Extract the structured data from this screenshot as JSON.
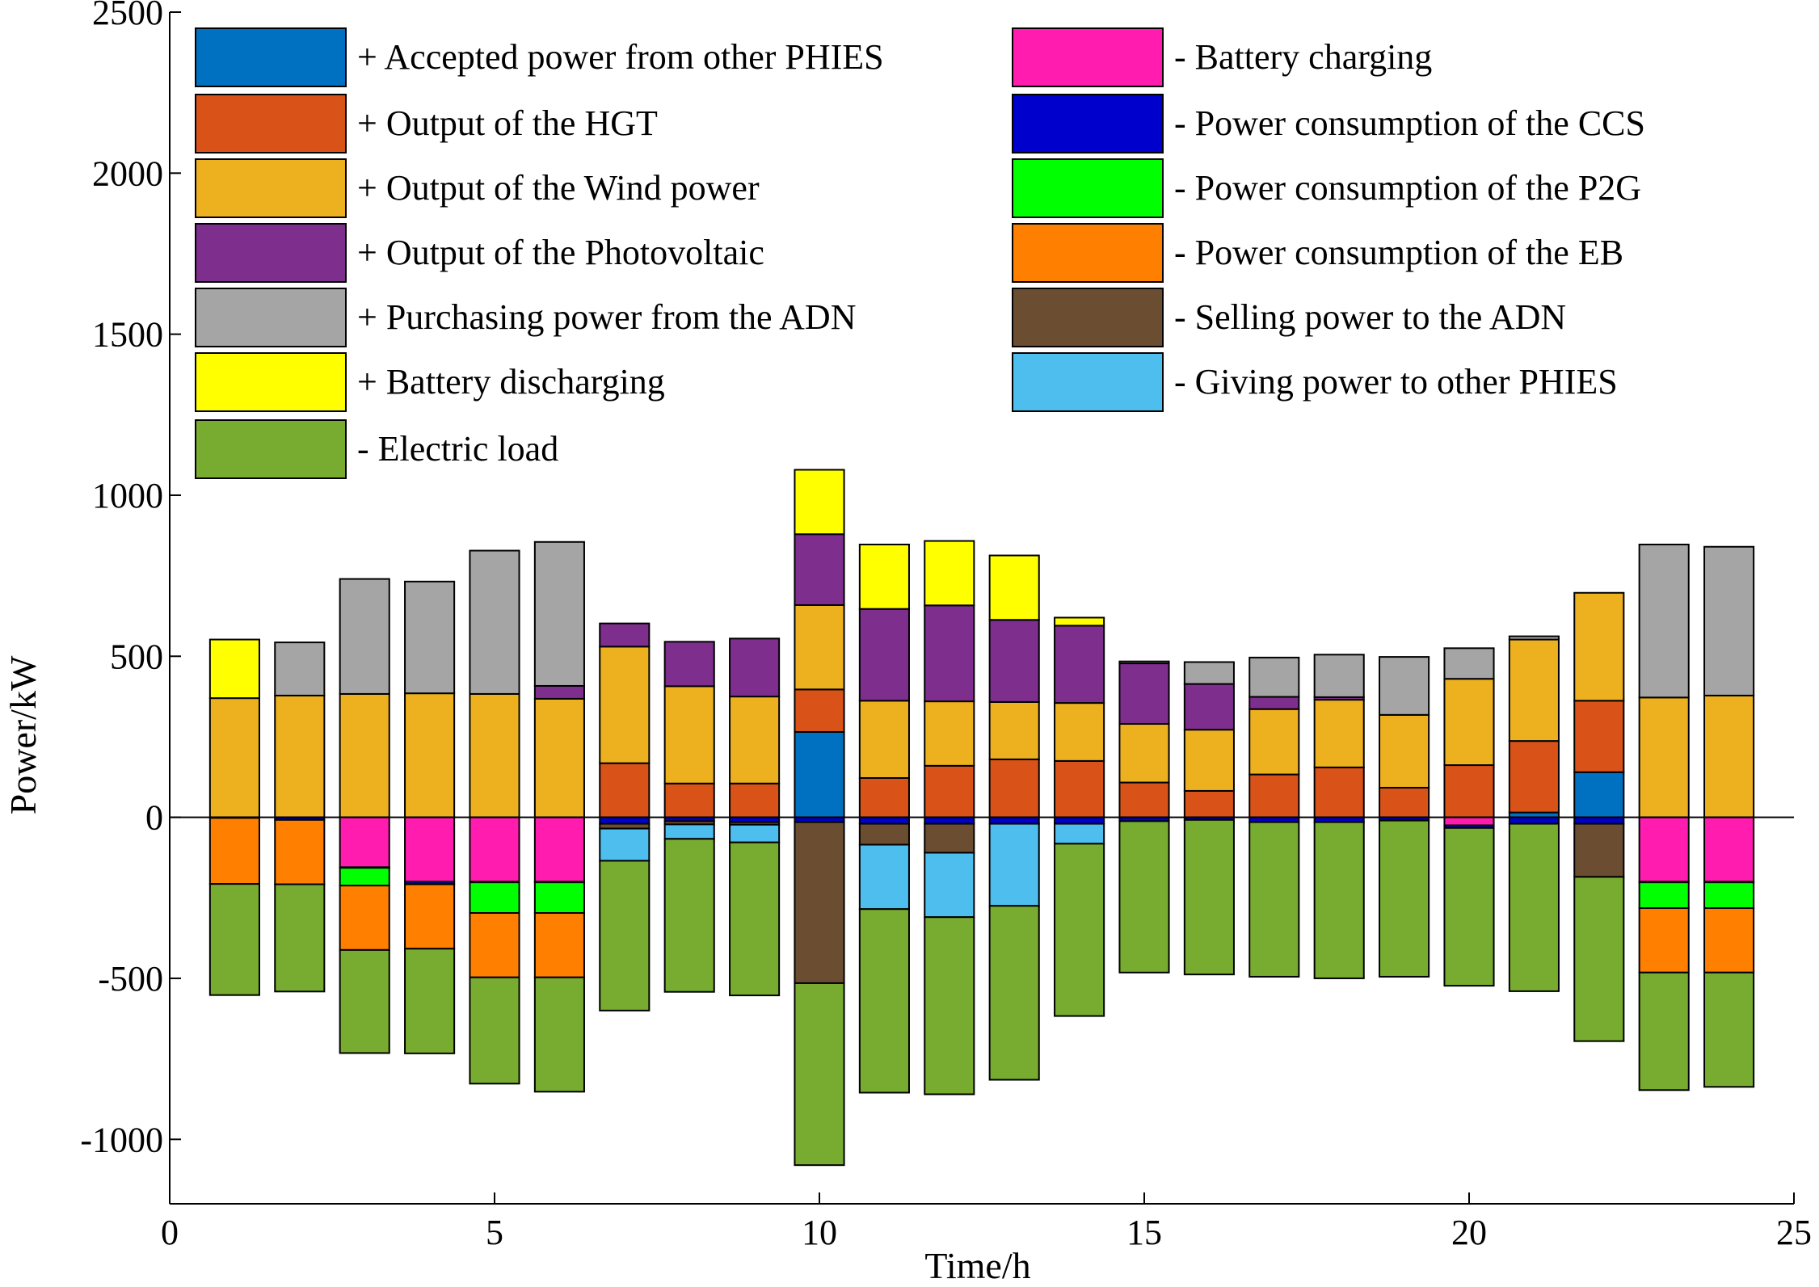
{
  "chart_data": {
    "type": "stacked-bar",
    "xlabel": "Time/h",
    "ylabel": "Power/kW",
    "xlim": [
      0,
      25
    ],
    "ylim": [
      -1200,
      2500
    ],
    "xticks": [
      0,
      5,
      10,
      15,
      20,
      25
    ],
    "yticks": [
      -1000,
      -500,
      0,
      500,
      1000,
      1500,
      2000,
      2500
    ],
    "legend_location": "top",
    "x": [
      1,
      2,
      3,
      4,
      5,
      6,
      7,
      8,
      9,
      10,
      11,
      12,
      13,
      14,
      15,
      16,
      17,
      18,
      19,
      20,
      21,
      22,
      23,
      24
    ],
    "series": [
      {
        "name": "+ Accepted power from other PHIES",
        "sign": "positive",
        "color": "#0070C0",
        "values": [
          0,
          0,
          0,
          0,
          0,
          0,
          0,
          0,
          0,
          265,
          0,
          0,
          0,
          0,
          0,
          0,
          0,
          0,
          0,
          0,
          15,
          140,
          0,
          0
        ]
      },
      {
        "name": "+ Output of the HGT",
        "sign": "positive",
        "color": "#D95319",
        "values": [
          0,
          0,
          0,
          0,
          0,
          0,
          168,
          105,
          105,
          132,
          122,
          160,
          180,
          175,
          108,
          82,
          133,
          155,
          92,
          162,
          222,
          222,
          0,
          0
        ]
      },
      {
        "name": "+ Output of the Wind power",
        "sign": "positive",
        "color": "#EDB120",
        "values": [
          370,
          378,
          383,
          385,
          383,
          368,
          362,
          302,
          270,
          262,
          240,
          200,
          178,
          180,
          182,
          190,
          203,
          210,
          226,
          268,
          315,
          335,
          372,
          378
        ]
      },
      {
        "name": "+ Output of the Photovoltaic",
        "sign": "positive",
        "color": "#7E2F8E",
        "values": [
          0,
          0,
          0,
          0,
          0,
          40,
          72,
          138,
          180,
          220,
          285,
          298,
          255,
          240,
          188,
          142,
          38,
          8,
          0,
          0,
          0,
          0,
          0,
          0
        ]
      },
      {
        "name": "+ Purchasing power from the ADN",
        "sign": "positive",
        "color": "#A5A5A5",
        "values": [
          0,
          165,
          357,
          347,
          445,
          447,
          0,
          0,
          0,
          0,
          0,
          0,
          0,
          0,
          6,
          68,
          122,
          132,
          180,
          95,
          10,
          0,
          475,
          462
        ]
      },
      {
        "name": "+ Battery discharging",
        "sign": "positive",
        "color": "#FFFF00",
        "values": [
          182,
          0,
          0,
          0,
          0,
          0,
          0,
          0,
          0,
          200,
          200,
          200,
          200,
          25,
          0,
          0,
          0,
          0,
          0,
          0,
          0,
          0,
          0,
          0
        ]
      },
      {
        "name": "- Battery charging",
        "sign": "negative",
        "color": "#FF1CAE",
        "values": [
          0,
          0,
          155,
          200,
          200,
          200,
          0,
          0,
          0,
          0,
          0,
          0,
          0,
          0,
          0,
          0,
          0,
          0,
          0,
          25,
          0,
          0,
          200,
          200
        ]
      },
      {
        "name": "- Power consumption of the CCS",
        "sign": "negative",
        "color": "#0000CC",
        "values": [
          2,
          8,
          2,
          8,
          2,
          2,
          20,
          12,
          15,
          15,
          20,
          20,
          20,
          20,
          12,
          8,
          15,
          15,
          10,
          8,
          20,
          20,
          2,
          2
        ]
      },
      {
        "name": "- Power consumption of the P2G",
        "sign": "negative",
        "color": "#00FF00",
        "values": [
          0,
          0,
          55,
          0,
          95,
          95,
          0,
          0,
          0,
          0,
          0,
          0,
          0,
          0,
          0,
          0,
          0,
          0,
          0,
          0,
          0,
          0,
          80,
          80
        ]
      },
      {
        "name": "- Power consumption of the EB",
        "sign": "negative",
        "color": "#FF7F00",
        "values": [
          205,
          200,
          200,
          200,
          200,
          200,
          0,
          0,
          0,
          0,
          0,
          0,
          0,
          0,
          0,
          0,
          0,
          0,
          0,
          0,
          0,
          0,
          200,
          200
        ]
      },
      {
        "name": "- Selling power to the ADN",
        "sign": "negative",
        "color": "#6B4E31",
        "values": [
          0,
          0,
          0,
          0,
          0,
          0,
          15,
          10,
          8,
          500,
          65,
          90,
          0,
          0,
          0,
          0,
          0,
          0,
          0,
          0,
          0,
          165,
          0,
          0
        ]
      },
      {
        "name": "- Giving power to other PHIES",
        "sign": "negative",
        "color": "#4DBEEE",
        "values": [
          0,
          0,
          0,
          0,
          0,
          0,
          100,
          45,
          55,
          0,
          200,
          200,
          255,
          62,
          0,
          0,
          0,
          0,
          0,
          0,
          0,
          0,
          0,
          0
        ]
      },
      {
        "name": "- Electric load",
        "sign": "negative",
        "color": "#77AC30",
        "values": [
          345,
          333,
          320,
          325,
          330,
          355,
          465,
          475,
          475,
          565,
          570,
          550,
          540,
          535,
          470,
          480,
          480,
          485,
          485,
          490,
          520,
          510,
          365,
          355
        ]
      }
    ],
    "legend_columns": [
      [
        "+ Accepted power from other PHIES",
        "+ Output of the HGT",
        "+ Output of the Wind power",
        "+ Output of the Photovoltaic",
        "+ Purchasing power from the ADN",
        "+ Battery discharging",
        "- Electric load"
      ],
      [
        "- Battery charging",
        "- Power consumption of the CCS",
        "- Power consumption of the P2G",
        "- Power consumption of the EB",
        "- Selling power to the ADN",
        "- Giving power to other PHIES"
      ]
    ]
  }
}
